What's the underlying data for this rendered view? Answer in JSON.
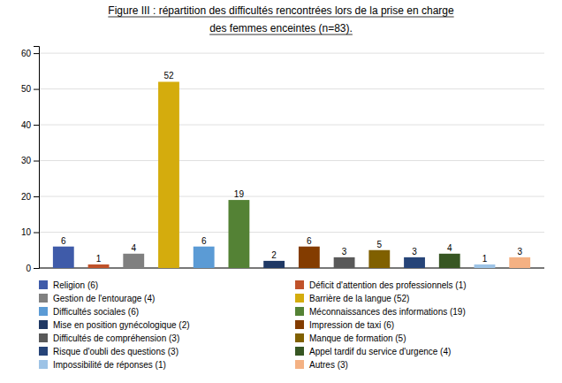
{
  "chart_data": {
    "type": "bar",
    "title": "Figure III : répartition des difficultés rencontrées lors de la prise en charge",
    "subtitle": "des femmes enceintes (n=83).",
    "categories": [
      "Religion (6)",
      "Déficit d'attention des professionnels (1)",
      "Gestion de l'entourage (4)",
      "Barrière de la langue (52)",
      "Difficultés sociales (6)",
      "Méconnaissances des informations (19)",
      "Mise en position gynécologique (2)",
      "Impression de taxi (6)",
      "Difficultés de compréhension (3)",
      "Manque de formation (5)",
      "Risque d'oubli des questions (3)",
      "Appel tardif du service d'urgence (4)",
      "Impossibilité de réponses (1)",
      "Autres (3)"
    ],
    "values": [
      6,
      1,
      4,
      52,
      6,
      19,
      2,
      6,
      3,
      5,
      3,
      4,
      1,
      3
    ],
    "colors": [
      "#3F5BA9",
      "#C0522A",
      "#808080",
      "#D4AC0D",
      "#5B9BD5",
      "#548235",
      "#1F3864",
      "#833C00",
      "#595959",
      "#806000",
      "#264478",
      "#375623",
      "#9DC3E6",
      "#F4B183"
    ],
    "ylim": [
      0,
      62
    ],
    "yticks": [
      0,
      10,
      20,
      30,
      40,
      50,
      60
    ],
    "grid": true,
    "legend": "bottom",
    "data_labels": true,
    "tick_labels": "y"
  }
}
